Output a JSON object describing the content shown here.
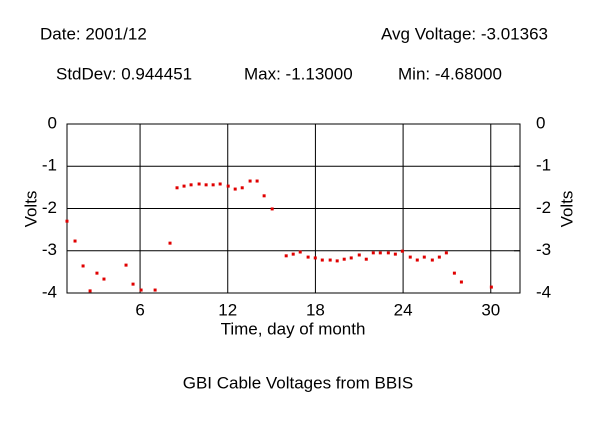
{
  "chart_data": {
    "type": "scatter",
    "header": {
      "date": "Date: 2001/12",
      "avg": "Avg Voltage: -3.01363",
      "stddev": "StdDev: 0.944451",
      "max": "Max: -1.13000",
      "min": "Min: -4.68000"
    },
    "title": "GBI Cable Voltages from BBIS",
    "x_label": "Time, day of month",
    "y_label": "Volts",
    "y2_label": "Volts",
    "color": "#e00000",
    "xlim": [
      1,
      32
    ],
    "xticks": [
      6,
      12,
      18,
      24,
      30
    ],
    "ylim": [
      -4,
      0
    ],
    "yticks": [
      0,
      -1,
      -2,
      -3,
      -4
    ],
    "y2lim": [
      -4,
      0
    ],
    "y2ticks": [
      0,
      -1,
      -2,
      -3,
      -4
    ],
    "grid": true,
    "x": [
      1.0,
      1.55,
      2.1,
      2.58,
      3.05,
      3.53,
      5.04,
      5.52,
      6.07,
      7.03,
      8.05,
      8.53,
      9.01,
      9.49,
      10.04,
      10.52,
      11.0,
      11.48,
      12.03,
      12.51,
      12.99,
      13.53,
      14.01,
      14.49,
      15.04,
      16.0,
      16.48,
      16.96,
      17.5,
      17.99,
      18.47,
      19.01,
      19.49,
      19.97,
      20.45,
      21.0,
      21.48,
      21.96,
      22.44,
      22.99,
      23.47,
      23.95,
      24.49,
      24.97,
      25.45,
      26.0,
      26.48,
      26.96,
      27.51,
      27.99,
      30.04
    ],
    "values": [
      -2.3,
      -2.77,
      -3.36,
      -3.95,
      -3.53,
      -3.67,
      -3.34,
      -3.79,
      -3.93,
      -3.93,
      -2.82,
      -1.51,
      -1.47,
      -1.44,
      -1.42,
      -1.44,
      -1.44,
      -1.42,
      -1.47,
      -1.54,
      -1.51,
      -1.35,
      -1.35,
      -1.7,
      -2.01,
      -3.12,
      -3.08,
      -3.03,
      -3.15,
      -3.17,
      -3.22,
      -3.22,
      -3.24,
      -3.2,
      -3.17,
      -3.1,
      -3.2,
      -3.05,
      -3.05,
      -3.05,
      -3.08,
      -3.01,
      -3.15,
      -3.22,
      -3.15,
      -3.22,
      -3.15,
      -3.05,
      -3.53,
      -3.74,
      -3.86
    ]
  }
}
